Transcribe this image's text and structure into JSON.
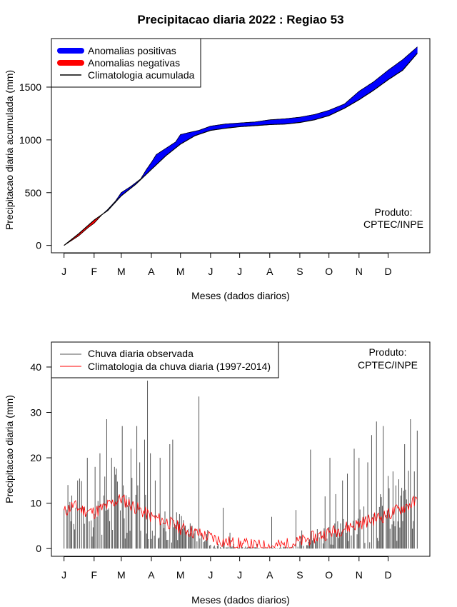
{
  "title": "Precipitacao diaria 2022 : Regiao 53",
  "chart_data": [
    {
      "type": "area",
      "name": "cumulative",
      "xlabel": "Meses (dados diarios)",
      "ylabel": "Precipitacao diaria acumulada (mm)",
      "x_tick_labels": [
        "J",
        "F",
        "M",
        "A",
        "M",
        "J",
        "J",
        "A",
        "S",
        "O",
        "N",
        "D"
      ],
      "month_start_day": [
        1,
        32,
        60,
        91,
        121,
        152,
        182,
        213,
        244,
        274,
        305,
        335
      ],
      "yticks": [
        0,
        500,
        1000,
        1500
      ],
      "xlim": [
        -12,
        378
      ],
      "ylim": [
        -70,
        1960
      ],
      "legend": [
        {
          "label": "Anomalias positivas",
          "color": "#0000ff"
        },
        {
          "label": "Anomalias negativas",
          "color": "#ff0000"
        },
        {
          "label": "Climatologia acumulada",
          "color": "#000000"
        }
      ],
      "credit": [
        "Produto:",
        "CPTEC/INPE"
      ],
      "climatology_knots": [
        [
          1,
          0
        ],
        [
          16,
          110
        ],
        [
          32,
          240
        ],
        [
          46,
          330
        ],
        [
          60,
          470
        ],
        [
          75,
          580
        ],
        [
          91,
          720
        ],
        [
          106,
          850
        ],
        [
          121,
          960
        ],
        [
          136,
          1040
        ],
        [
          152,
          1090
        ],
        [
          167,
          1110
        ],
        [
          182,
          1125
        ],
        [
          198,
          1135
        ],
        [
          213,
          1145
        ],
        [
          229,
          1150
        ],
        [
          244,
          1165
        ],
        [
          259,
          1190
        ],
        [
          274,
          1230
        ],
        [
          290,
          1300
        ],
        [
          305,
          1380
        ],
        [
          320,
          1470
        ],
        [
          335,
          1570
        ],
        [
          350,
          1660
        ],
        [
          365,
          1820
        ]
      ],
      "observed_knots": [
        [
          1,
          0
        ],
        [
          16,
          90
        ],
        [
          26,
          170
        ],
        [
          32,
          210
        ],
        [
          40,
          290
        ],
        [
          46,
          340
        ],
        [
          54,
          420
        ],
        [
          60,
          500
        ],
        [
          70,
          560
        ],
        [
          80,
          630
        ],
        [
          86,
          720
        ],
        [
          92,
          800
        ],
        [
          96,
          860
        ],
        [
          106,
          920
        ],
        [
          116,
          980
        ],
        [
          121,
          1050
        ],
        [
          130,
          1070
        ],
        [
          140,
          1090
        ],
        [
          152,
          1130
        ],
        [
          167,
          1150
        ],
        [
          182,
          1160
        ],
        [
          198,
          1170
        ],
        [
          213,
          1190
        ],
        [
          229,
          1200
        ],
        [
          244,
          1215
        ],
        [
          259,
          1240
        ],
        [
          274,
          1280
        ],
        [
          290,
          1340
        ],
        [
          300,
          1420
        ],
        [
          305,
          1460
        ],
        [
          320,
          1550
        ],
        [
          335,
          1660
        ],
        [
          350,
          1760
        ],
        [
          365,
          1880
        ]
      ]
    },
    {
      "type": "line",
      "name": "daily",
      "xlabel": "Meses (dados diarios)",
      "ylabel": "Precipitacao diaria (mm)",
      "x_tick_labels": [
        "J",
        "F",
        "M",
        "A",
        "M",
        "J",
        "J",
        "A",
        "S",
        "O",
        "N",
        "D"
      ],
      "month_start_day": [
        1,
        32,
        60,
        91,
        121,
        152,
        182,
        213,
        244,
        274,
        305,
        335
      ],
      "yticks": [
        0,
        10,
        20,
        30,
        40
      ],
      "xlim": [
        -12,
        378
      ],
      "ylim": [
        -1.7,
        45.5
      ],
      "legend": [
        {
          "label": "Chuva diaria observada",
          "color": "#555555"
        },
        {
          "label": "Climatologia da chuva diaria (1997-2014)",
          "color": "#ff0000"
        }
      ],
      "credit": [
        "Produto:",
        "CPTEC/INPE"
      ],
      "climatology_daily_knots": [
        [
          1,
          8
        ],
        [
          10,
          9.5
        ],
        [
          20,
          8.5
        ],
        [
          32,
          8
        ],
        [
          46,
          9.5
        ],
        [
          60,
          11
        ],
        [
          75,
          9
        ],
        [
          91,
          7
        ],
        [
          106,
          6
        ],
        [
          121,
          4.5
        ],
        [
          136,
          3.5
        ],
        [
          152,
          2.5
        ],
        [
          167,
          1.5
        ],
        [
          182,
          1
        ],
        [
          198,
          0.6
        ],
        [
          213,
          0.5
        ],
        [
          229,
          0.8
        ],
        [
          244,
          1.5
        ],
        [
          259,
          2.5
        ],
        [
          274,
          3.5
        ],
        [
          290,
          4.5
        ],
        [
          305,
          5.5
        ],
        [
          320,
          6.5
        ],
        [
          335,
          7.5
        ],
        [
          350,
          9
        ],
        [
          365,
          10.5
        ]
      ],
      "observed_peaks": [
        [
          5,
          14
        ],
        [
          15,
          15
        ],
        [
          25,
          20
        ],
        [
          33,
          18
        ],
        [
          38,
          21
        ],
        [
          45,
          28.5
        ],
        [
          50,
          20
        ],
        [
          53,
          18
        ],
        [
          61,
          27
        ],
        [
          70,
          22
        ],
        [
          76,
          27
        ],
        [
          79,
          19
        ],
        [
          84,
          24
        ],
        [
          87,
          37
        ],
        [
          90,
          21
        ],
        [
          95,
          15
        ],
        [
          100,
          20
        ],
        [
          110,
          23
        ],
        [
          113,
          24
        ],
        [
          117,
          8
        ],
        [
          140,
          33.5
        ],
        [
          165,
          9
        ],
        [
          172,
          3.5
        ],
        [
          176,
          1
        ],
        [
          200,
          1
        ],
        [
          215,
          7
        ],
        [
          240,
          8.5
        ],
        [
          246,
          4
        ],
        [
          255,
          21.8
        ],
        [
          270,
          11.5
        ],
        [
          275,
          20
        ],
        [
          281,
          12
        ],
        [
          288,
          15
        ],
        [
          293,
          16.5
        ],
        [
          300,
          22
        ],
        [
          305,
          20
        ],
        [
          314,
          19
        ],
        [
          318,
          25
        ],
        [
          323,
          28
        ],
        [
          330,
          27
        ],
        [
          335,
          16
        ],
        [
          340,
          17
        ],
        [
          352,
          23
        ],
        [
          358,
          28.5
        ],
        [
          362,
          17
        ],
        [
          365,
          26
        ]
      ]
    }
  ]
}
